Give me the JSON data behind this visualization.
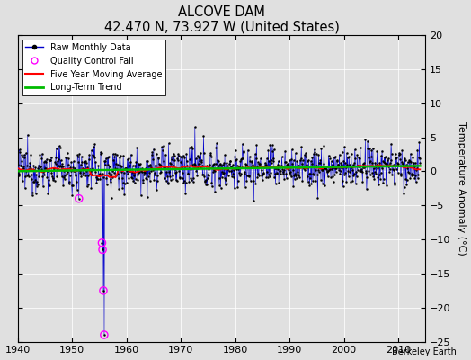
{
  "title": "ALCOVE DAM",
  "subtitle": "42.470 N, 73.927 W (United States)",
  "ylabel": "Temperature Anomaly (°C)",
  "credit": "Berkeley Earth",
  "xlim": [
    1940,
    2015
  ],
  "ylim": [
    -25,
    20
  ],
  "yticks": [
    -25,
    -20,
    -15,
    -10,
    -5,
    0,
    5,
    10,
    15,
    20
  ],
  "xticks": [
    1940,
    1950,
    1960,
    1970,
    1980,
    1990,
    2000,
    2010
  ],
  "bg_color": "#e0e0e0",
  "line_color": "#0000cc",
  "ma_color": "#ff0000",
  "trend_color": "#00bb00",
  "qc_color": "#ff00ff",
  "seed": 12345,
  "start_year": 1940,
  "end_year": 2014,
  "qc_fail_years": [
    1951.25,
    1955.5,
    1955.6,
    1955.75,
    1955.9
  ],
  "qc_fail_values": [
    -4.0,
    -10.5,
    -11.5,
    -17.5,
    -24.0
  ]
}
